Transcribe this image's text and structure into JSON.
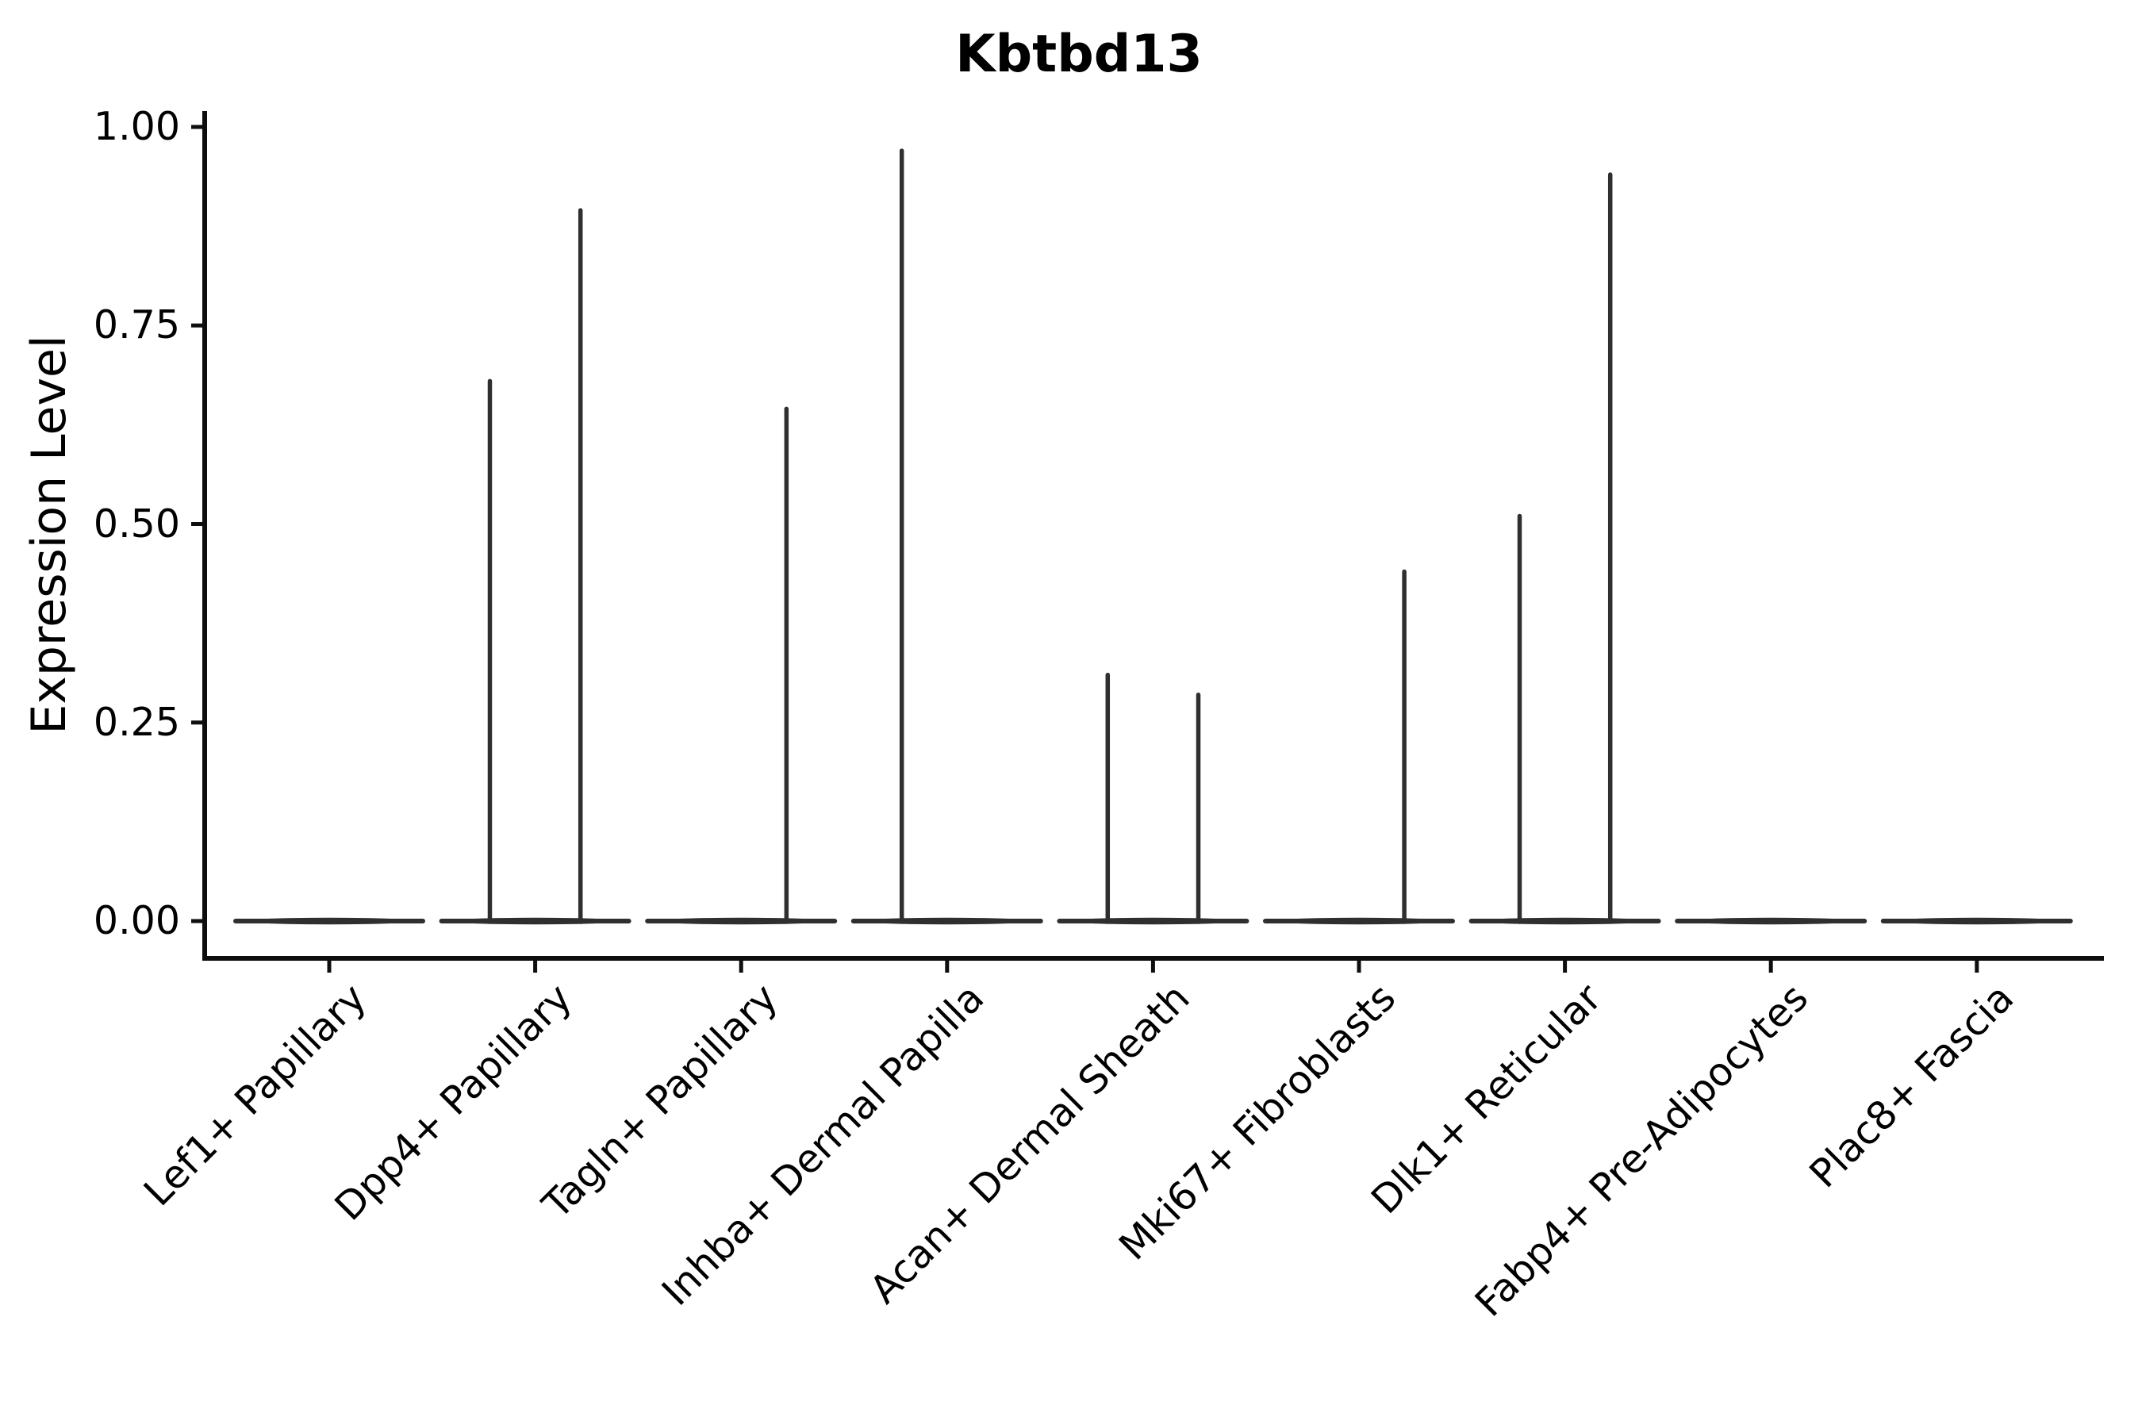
{
  "chart_data": {
    "type": "violin",
    "title": "Kbtbd13",
    "ylabel": "Expression Level",
    "xlabel": "",
    "ylim": [
      0,
      1.0
    ],
    "grid": false,
    "legend": "none",
    "y_ticks": [
      {
        "value": 1.0,
        "label": "1.00"
      },
      {
        "value": 0.75,
        "label": "0.75"
      },
      {
        "value": 0.5,
        "label": "0.50"
      },
      {
        "value": 0.25,
        "label": "0.25"
      },
      {
        "value": 0.0,
        "label": "0.00"
      }
    ],
    "categories": [
      "Lef1+ Papillary",
      "Dpp4+ Papillary",
      "Tagln+ Papillary",
      "Inhba+ Dermal Papilla",
      "Acan+ Dermal Sheath",
      "Mki67+ Fibroblasts",
      "Dlk1+ Reticular",
      "Fabp4+ Pre-Adipocytes",
      "Plac8+ Fascia"
    ],
    "violins": [
      {
        "category": "Lef1+ Papillary",
        "bulk_at": 0.0,
        "spikes": []
      },
      {
        "category": "Dpp4+ Papillary",
        "bulk_at": 0.0,
        "spikes": [
          {
            "offset_frac": -0.22,
            "max_value": 0.68
          },
          {
            "offset_frac": 0.22,
            "max_value": 0.895
          }
        ]
      },
      {
        "category": "Tagln+ Papillary",
        "bulk_at": 0.0,
        "spikes": [
          {
            "offset_frac": 0.22,
            "max_value": 0.645
          }
        ]
      },
      {
        "category": "Inhba+ Dermal Papilla",
        "bulk_at": 0.0,
        "spikes": [
          {
            "offset_frac": -0.22,
            "max_value": 0.97
          }
        ]
      },
      {
        "category": "Acan+ Dermal Sheath",
        "bulk_at": 0.0,
        "spikes": [
          {
            "offset_frac": -0.22,
            "max_value": 0.31
          },
          {
            "offset_frac": 0.22,
            "max_value": 0.285
          }
        ]
      },
      {
        "category": "Mki67+ Fibroblasts",
        "bulk_at": 0.0,
        "spikes": [
          {
            "offset_frac": 0.22,
            "max_value": 0.44
          }
        ]
      },
      {
        "category": "Dlk1+ Reticular",
        "bulk_at": 0.0,
        "spikes": [
          {
            "offset_frac": -0.22,
            "max_value": 0.51
          },
          {
            "offset_frac": 0.22,
            "max_value": 0.94
          }
        ]
      },
      {
        "category": "Fabp4+ Pre-Adipocytes",
        "bulk_at": 0.0,
        "spikes": []
      },
      {
        "category": "Plac8+ Fascia",
        "bulk_at": 0.0,
        "spikes": []
      }
    ],
    "colors": {
      "violin": "#2f2f2f",
      "axis": "#0e0e0e",
      "text": "#000000",
      "background": "#ffffff"
    }
  }
}
